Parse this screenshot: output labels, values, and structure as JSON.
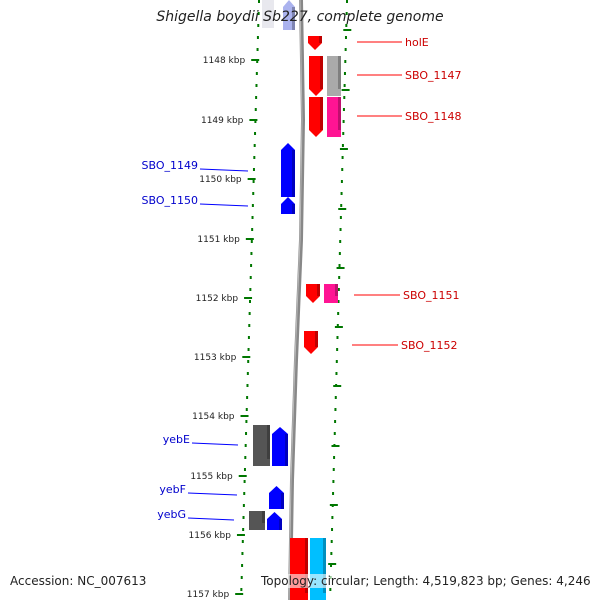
{
  "title": "Shigella boydii Sb227, complete genome",
  "accession": "Accession: NC_007613",
  "summary": "Topology: circular; Length: 4,519,823 bp; Genes: 4,246",
  "colors": {
    "forward_gene": "#ff0000",
    "forward_rna": "#ff1493",
    "reverse_gene": "#0000ff",
    "reverse_rna": "#555555",
    "pseudo": "#aaaaaa",
    "cyan_feature": "#00bfff",
    "backbone": "#888888",
    "tick": "#007700"
  },
  "ticks": [
    "1148 kbp",
    "1149 kbp",
    "1150 kbp",
    "1151 kbp",
    "1152 kbp",
    "1153 kbp",
    "1154 kbp",
    "1155 kbp",
    "1156 kbp",
    "1157 kbp"
  ],
  "genes_forward": [
    "holE",
    "SBO_1147",
    "SBO_1148",
    "SBO_1151",
    "SBO_1152"
  ],
  "genes_reverse": [
    "SBO_1149",
    "SBO_1150",
    "yebE",
    "yebF",
    "yebG"
  ]
}
